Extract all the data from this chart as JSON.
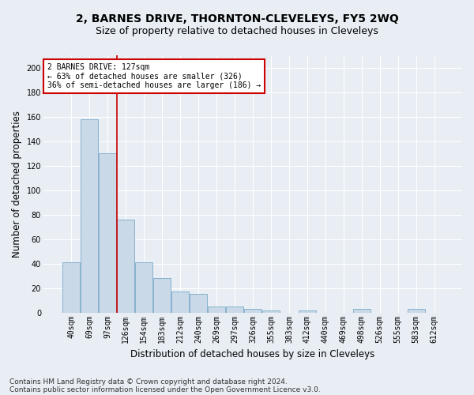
{
  "title": "2, BARNES DRIVE, THORNTON-CLEVELEYS, FY5 2WQ",
  "subtitle": "Size of property relative to detached houses in Cleveleys",
  "xlabel": "Distribution of detached houses by size in Cleveleys",
  "ylabel": "Number of detached properties",
  "categories": [
    "40sqm",
    "69sqm",
    "97sqm",
    "126sqm",
    "154sqm",
    "183sqm",
    "212sqm",
    "240sqm",
    "269sqm",
    "297sqm",
    "326sqm",
    "355sqm",
    "383sqm",
    "412sqm",
    "440sqm",
    "469sqm",
    "498sqm",
    "526sqm",
    "555sqm",
    "583sqm",
    "612sqm"
  ],
  "values": [
    41,
    158,
    130,
    76,
    41,
    28,
    17,
    15,
    5,
    5,
    3,
    2,
    0,
    2,
    0,
    0,
    3,
    0,
    0,
    3,
    0
  ],
  "bar_color": "#c9d9e8",
  "bar_edge_color": "#7aaac8",
  "property_line_color": "#cc0000",
  "property_line_x": 2.5,
  "ylim": [
    0,
    210
  ],
  "yticks": [
    0,
    20,
    40,
    60,
    80,
    100,
    120,
    140,
    160,
    180,
    200
  ],
  "annotation_text": "2 BARNES DRIVE: 127sqm\n← 63% of detached houses are smaller (326)\n36% of semi-detached houses are larger (186) →",
  "annotation_box_color": "#ffffff",
  "annotation_box_edge": "#cc0000",
  "footer_line1": "Contains HM Land Registry data © Crown copyright and database right 2024.",
  "footer_line2": "Contains public sector information licensed under the Open Government Licence v3.0.",
  "background_color": "#e8eef4",
  "grid_color": "#ffffff",
  "title_fontsize": 10,
  "subtitle_fontsize": 9,
  "axis_label_fontsize": 8.5,
  "tick_fontsize": 7,
  "annotation_fontsize": 7,
  "footer_fontsize": 6.5
}
